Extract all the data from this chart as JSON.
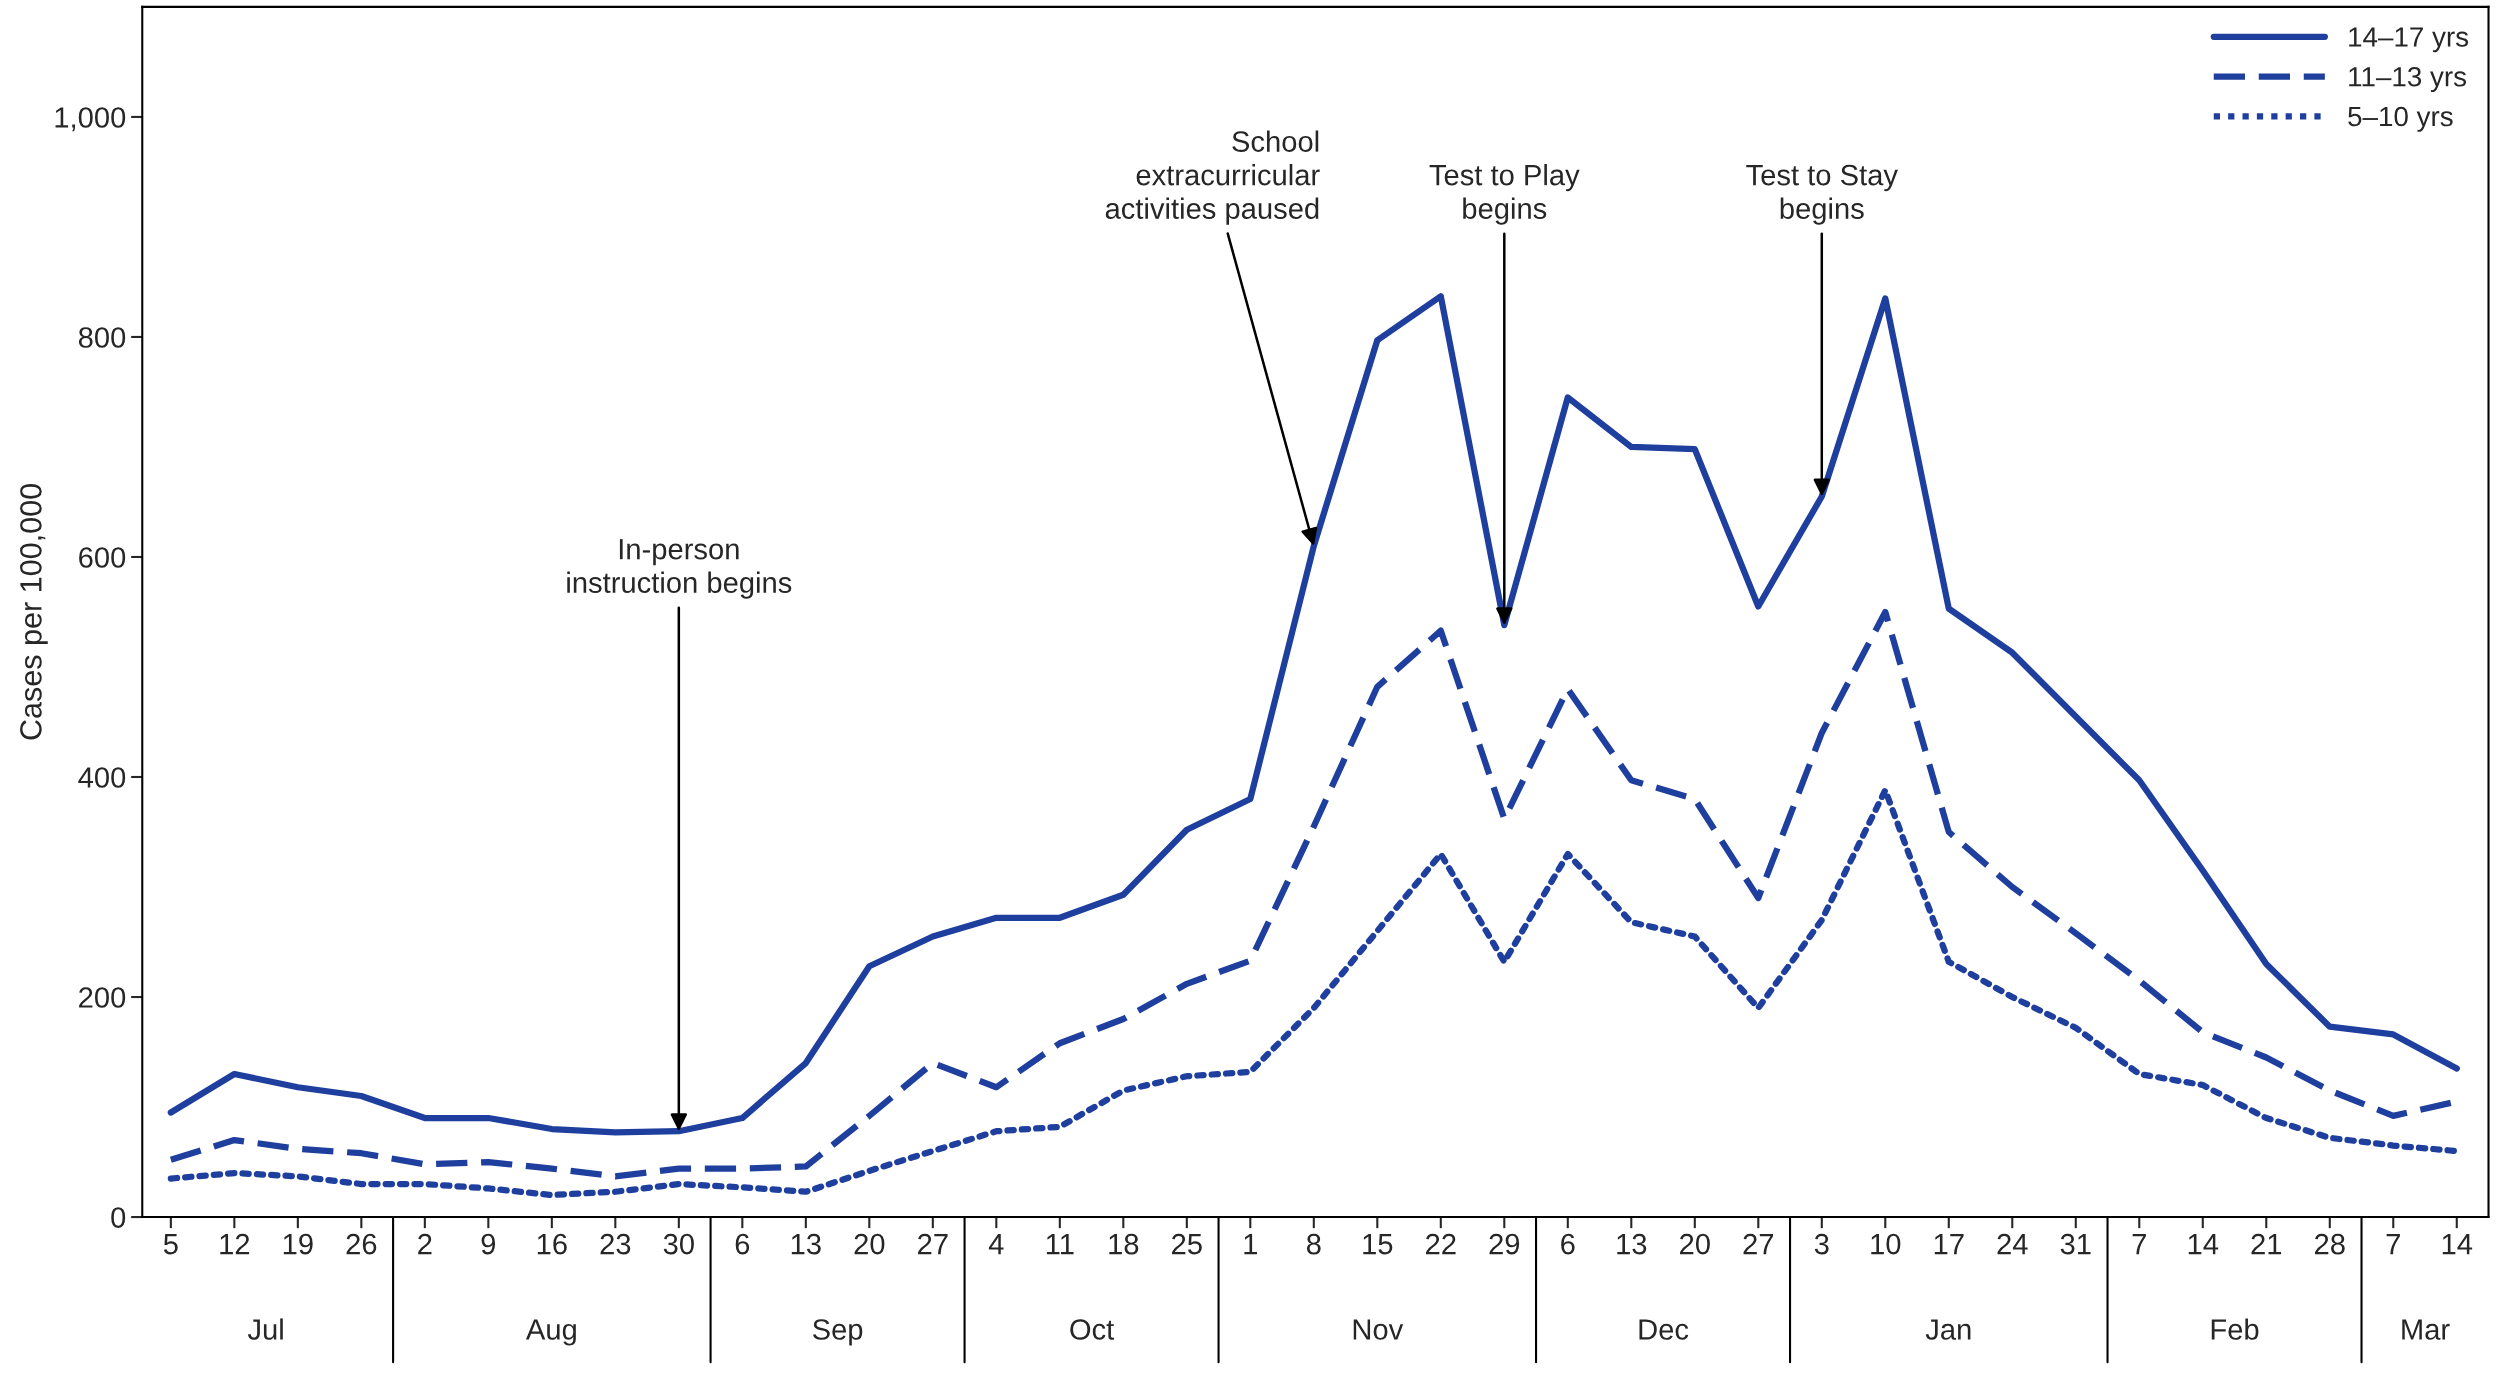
{
  "chart_data": {
    "type": "line",
    "ylabel": "Cases per 100,000",
    "categories": [
      "5",
      "12",
      "19",
      "26",
      "2",
      "9",
      "16",
      "23",
      "30",
      "6",
      "13",
      "20",
      "27",
      "4",
      "11",
      "18",
      "25",
      "1",
      "8",
      "15",
      "22",
      "29",
      "6",
      "13",
      "20",
      "27",
      "3",
      "10",
      "17",
      "24",
      "31",
      "7",
      "14",
      "21",
      "28",
      "7",
      "14"
    ],
    "series": [
      {
        "name": "14–17 yrs",
        "color": "#1f3f9f",
        "line_style": "solid",
        "values": [
          95,
          130,
          118,
          110,
          90,
          90,
          80,
          77,
          78,
          90,
          140,
          228,
          255,
          272,
          272,
          293,
          352,
          380,
          610,
          797,
          837,
          538,
          745,
          700,
          698,
          555,
          655,
          835,
          553,
          513,
          455,
          397,
          315,
          230,
          173,
          166,
          135
        ]
      },
      {
        "name": "11–13 yrs",
        "color": "#1f3f9f",
        "line_style": "dashed",
        "values": [
          52,
          70,
          62,
          58,
          48,
          50,
          44,
          37,
          44,
          44,
          46,
          92,
          140,
          118,
          158,
          180,
          212,
          233,
          355,
          482,
          533,
          362,
          480,
          397,
          380,
          290,
          440,
          550,
          350,
          300,
          258,
          215,
          168,
          145,
          115,
          92,
          105
        ]
      },
      {
        "name": "5–10 yrs",
        "color": "#1f3f9f",
        "line_style": "dotted",
        "values": [
          35,
          40,
          37,
          30,
          30,
          26,
          20,
          23,
          30,
          27,
          23,
          42,
          60,
          78,
          82,
          115,
          128,
          132,
          190,
          260,
          330,
          232,
          330,
          268,
          255,
          190,
          270,
          388,
          232,
          200,
          172,
          130,
          120,
          90,
          72,
          65,
          60
        ]
      }
    ],
    "ylim": [
      0,
      1100
    ],
    "yticks": [
      0,
      200,
      400,
      600,
      800,
      {
        "value": 1000,
        "label": "1,000"
      }
    ],
    "grid": false,
    "legend": "top right",
    "marker": "none",
    "annotations": [
      {
        "text": "In-person\ninstruction begins",
        "x": "30",
        "y": 78
      },
      {
        "text": "School\nextracurricular\nactivities paused",
        "x": "8",
        "y": 610
      },
      {
        "text": "Test to Play\nbegins",
        "x": "29",
        "y": 538
      },
      {
        "text": "Test to Stay\nbegins",
        "x": "3",
        "y": 655
      },
      "Jul",
      "Aug",
      "Sep",
      "Oct",
      "Nov",
      "Dec",
      "Jan",
      "Feb",
      "Mar"
    ]
  }
}
